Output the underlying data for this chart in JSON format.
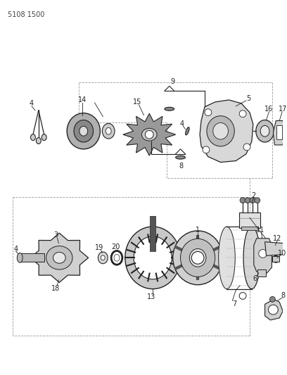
{
  "title_code": "5108 1500",
  "bg_color": "#ffffff",
  "line_color": "#222222",
  "fig_width": 4.08,
  "fig_height": 5.33,
  "dpi": 100
}
